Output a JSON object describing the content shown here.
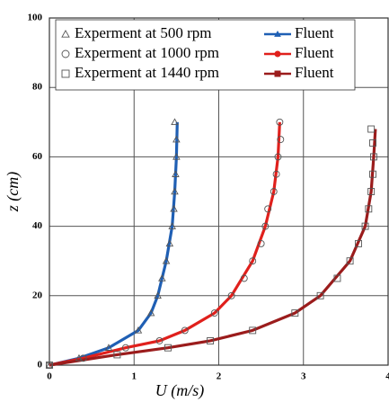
{
  "chart_data": {
    "type": "scatter",
    "x_label": "U (m/s)",
    "y_label": "z (cm)",
    "xlim": [
      0,
      4
    ],
    "xticks": [
      0,
      1,
      2,
      3,
      4
    ],
    "ylim": [
      0,
      100
    ],
    "yticks": [
      0,
      20,
      40,
      60,
      80,
      100
    ],
    "grid": true,
    "legend": "top",
    "series": [
      {
        "name": "Experment at 500 rpm",
        "kind": "points",
        "marker": "triangle",
        "color": "#555555",
        "x": [
          0,
          0.35,
          0.7,
          1.05,
          1.2,
          1.28,
          1.33,
          1.38,
          1.42,
          1.45,
          1.47,
          1.48,
          1.49,
          1.5,
          1.5,
          1.48
        ],
        "y": [
          0,
          2,
          5,
          10,
          15,
          20,
          25,
          30,
          35,
          40,
          45,
          50,
          55,
          60,
          65,
          70
        ]
      },
      {
        "name": "Fluent",
        "kind": "line",
        "marker": "triangle",
        "color": "#1f5fb4",
        "x": [
          0,
          0.35,
          0.7,
          1.05,
          1.2,
          1.28,
          1.38,
          1.45,
          1.48,
          1.5,
          1.51
        ],
        "y": [
          0,
          2,
          5,
          10,
          15,
          20,
          30,
          40,
          50,
          60,
          70
        ]
      },
      {
        "name": "Experment  at 1000 rpm",
        "kind": "points",
        "marker": "circle",
        "color": "#555555",
        "x": [
          0,
          0.4,
          0.9,
          1.3,
          1.6,
          1.95,
          2.15,
          2.3,
          2.4,
          2.5,
          2.55,
          2.58,
          2.65,
          2.68,
          2.7,
          2.73,
          2.72
        ],
        "y": [
          0,
          2,
          5,
          7,
          10,
          15,
          20,
          25,
          30,
          35,
          40,
          45,
          50,
          55,
          60,
          65,
          70
        ]
      },
      {
        "name": "Fluent",
        "kind": "line",
        "marker": "circle",
        "color": "#e0201c",
        "x": [
          0,
          0.4,
          0.9,
          1.3,
          1.6,
          1.95,
          2.15,
          2.4,
          2.55,
          2.65,
          2.7,
          2.72
        ],
        "y": [
          0,
          2,
          5,
          7,
          10,
          15,
          20,
          30,
          40,
          50,
          60,
          70
        ]
      },
      {
        "name": "Experment  at 1440 rpm",
        "kind": "points",
        "marker": "square",
        "color": "#555555",
        "x": [
          0,
          0.8,
          1.4,
          1.9,
          2.4,
          2.9,
          3.2,
          3.4,
          3.55,
          3.65,
          3.73,
          3.77,
          3.8,
          3.82,
          3.83,
          3.82,
          3.8
        ],
        "y": [
          0,
          3,
          5,
          7,
          10,
          15,
          20,
          25,
          30,
          35,
          40,
          45,
          50,
          55,
          60,
          64,
          68
        ]
      },
      {
        "name": "Fluent",
        "kind": "line",
        "marker": "square",
        "color": "#9b1c1c",
        "x": [
          0,
          0.8,
          1.4,
          1.9,
          2.4,
          2.9,
          3.2,
          3.55,
          3.73,
          3.8,
          3.83,
          3.85
        ],
        "y": [
          0,
          3,
          5,
          7,
          10,
          15,
          20,
          30,
          40,
          50,
          60,
          68
        ]
      }
    ]
  }
}
